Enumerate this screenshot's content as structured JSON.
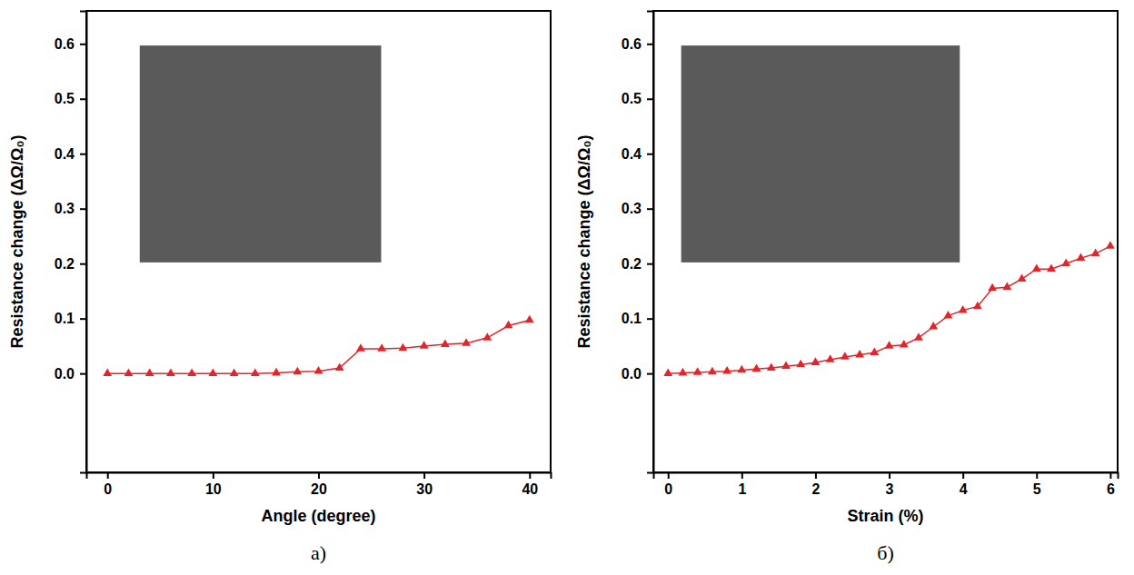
{
  "chart_data": [
    {
      "type": "line",
      "caption": "а)",
      "x_label": "Angle (degree)",
      "y_label": "Resistance change (ΔΩ/Ω₀)",
      "x": [
        0,
        2,
        4,
        6,
        8,
        10,
        12,
        14,
        16,
        18,
        20,
        22,
        24,
        26,
        28,
        30,
        32,
        34,
        36,
        38,
        40
      ],
      "values": [
        0,
        0,
        0,
        0,
        0,
        0,
        0,
        0,
        0.001,
        0.003,
        0.004,
        0.01,
        0.045,
        0.045,
        0.046,
        0.05,
        0.053,
        0.055,
        0.065,
        0.087,
        0.097
      ],
      "color": "#e3242b",
      "marker": "triangle",
      "line_style": "solid",
      "xlim": [
        -2,
        42
      ],
      "xticks": [
        0,
        10,
        20,
        30,
        40
      ],
      "ylim": [
        -0.18,
        0.66
      ],
      "yticks": [
        {
          "value": 0,
          "label": "0.0"
        },
        {
          "value": 0.1,
          "label": "0.1"
        },
        {
          "value": 0.2,
          "label": "0.2"
        },
        {
          "value": 0.3,
          "label": "0.3"
        },
        {
          "value": 0.4,
          "label": "0.4"
        },
        {
          "value": 0.5,
          "label": "0.5"
        },
        {
          "value": 0.6,
          "label": "0.6"
        }
      ],
      "grid": false
    },
    {
      "type": "line",
      "caption": "б)",
      "x_label": "Strain (%)",
      "y_label": "Resistance change (ΔΩ/Ω₀)",
      "x": [
        0,
        0.2,
        0.4,
        0.6,
        0.8,
        1.0,
        1.2,
        1.4,
        1.6,
        1.8,
        2.0,
        2.2,
        2.4,
        2.6,
        2.8,
        3.0,
        3.2,
        3.4,
        3.6,
        3.8,
        4.0,
        4.2,
        4.4,
        4.6,
        4.8,
        5.0,
        5.2,
        5.4,
        5.6,
        5.8,
        6.0
      ],
      "values": [
        0,
        0.001,
        0.002,
        0.003,
        0.004,
        0.006,
        0.008,
        0.01,
        0.013,
        0.016,
        0.02,
        0.025,
        0.03,
        0.034,
        0.038,
        0.05,
        0.052,
        0.065,
        0.085,
        0.105,
        0.115,
        0.122,
        0.155,
        0.157,
        0.172,
        0.19,
        0.19,
        0.2,
        0.21,
        0.218,
        0.232
      ],
      "color": "#e3242b",
      "marker": "triangle",
      "line_style": "solid",
      "xlim": [
        -0.2,
        6.1
      ],
      "xticks": [
        0,
        1,
        2,
        3,
        4,
        5,
        6
      ],
      "ylim": [
        -0.18,
        0.66
      ],
      "yticks": [
        {
          "value": 0,
          "label": "0.0"
        },
        {
          "value": 0.1,
          "label": "0.1"
        },
        {
          "value": 0.2,
          "label": "0.2"
        },
        {
          "value": 0.3,
          "label": "0.3"
        },
        {
          "value": 0.4,
          "label": "0.4"
        },
        {
          "value": 0.5,
          "label": "0.5"
        },
        {
          "value": 0.6,
          "label": "0.6"
        }
      ],
      "grid": false
    }
  ]
}
